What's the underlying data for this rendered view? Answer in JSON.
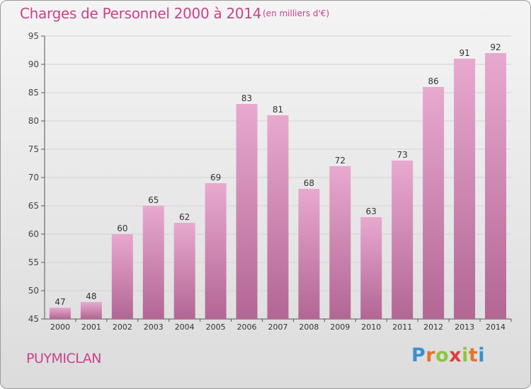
{
  "header": {
    "title": "Charges de Personnel 2000 à 2014",
    "unit": "(en milliers d'€)"
  },
  "footer": {
    "commune": "PUYMICLAN",
    "logo": {
      "letters": [
        "P",
        "r",
        "o",
        "x",
        "i",
        "t",
        "i"
      ],
      "colors": [
        "#3a8fd0",
        "#e8732b",
        "#8cc63f",
        "#e23a3a",
        "#8cc63f",
        "#e8732b",
        "#3a8fd0"
      ]
    }
  },
  "colors": {
    "text": "#c8438a",
    "bar_top": "#e8a9cf",
    "bar_bottom": "#b26694",
    "gridline": "#d4d4d4"
  },
  "chart_data": {
    "type": "bar",
    "categories": [
      "2000",
      "2001",
      "2002",
      "2003",
      "2004",
      "2005",
      "2006",
      "2007",
      "2008",
      "2009",
      "2010",
      "2011",
      "2012",
      "2013",
      "2014"
    ],
    "values": [
      47,
      48,
      60,
      65,
      62,
      69,
      83,
      81,
      68,
      72,
      63,
      73,
      86,
      91,
      92
    ],
    "ylim": [
      45,
      95
    ],
    "yticks": [
      45,
      50,
      55,
      60,
      65,
      70,
      75,
      80,
      85,
      90,
      95
    ],
    "grid": true,
    "data_labels": true
  }
}
